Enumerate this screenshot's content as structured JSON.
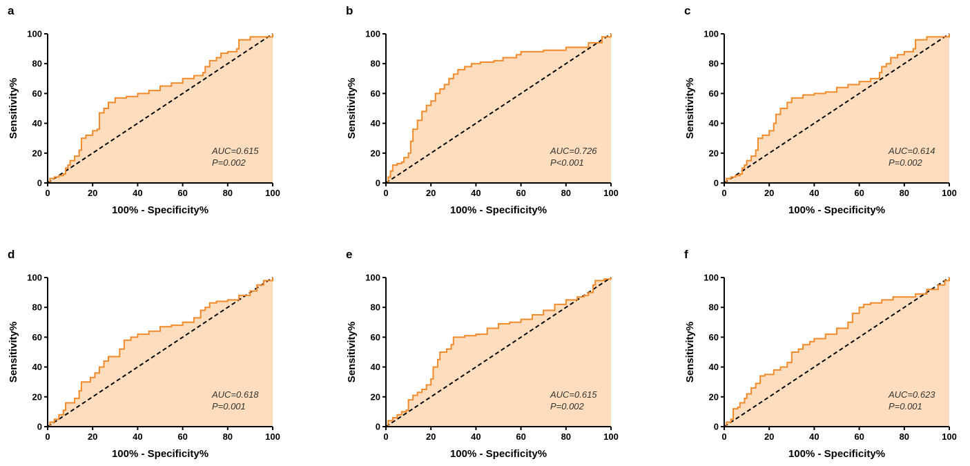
{
  "figure": {
    "x_label": "100% - Specificity%",
    "y_label": "Sensitivity%",
    "fill_color": "#FDDDBD",
    "curve_color": "#F08A2A"
  },
  "chart_data": [
    {
      "type": "area",
      "panel": "a",
      "xlim": [
        0,
        100
      ],
      "ylim": [
        0,
        100
      ],
      "x_ticks": [
        "0",
        "20",
        "40",
        "60",
        "80",
        "100"
      ],
      "y_ticks": [
        "0",
        "20",
        "40",
        "60",
        "80",
        "100"
      ],
      "auc": "AUC=0.615",
      "p": "P=0.002",
      "points": [
        [
          0,
          0
        ],
        [
          1,
          3
        ],
        [
          3,
          4
        ],
        [
          5,
          5
        ],
        [
          7,
          6
        ],
        [
          8,
          10
        ],
        [
          9,
          12
        ],
        [
          10,
          15
        ],
        [
          12,
          18
        ],
        [
          14,
          22
        ],
        [
          15,
          30
        ],
        [
          17,
          32
        ],
        [
          19,
          32
        ],
        [
          20,
          35
        ],
        [
          22,
          36
        ],
        [
          23,
          47
        ],
        [
          25,
          50
        ],
        [
          27,
          54
        ],
        [
          30,
          57
        ],
        [
          35,
          58
        ],
        [
          40,
          60
        ],
        [
          45,
          62
        ],
        [
          50,
          65
        ],
        [
          55,
          67
        ],
        [
          60,
          70
        ],
        [
          65,
          72
        ],
        [
          69,
          74
        ],
        [
          70,
          78
        ],
        [
          72,
          82
        ],
        [
          75,
          84
        ],
        [
          77,
          87
        ],
        [
          80,
          88
        ],
        [
          84,
          90
        ],
        [
          85,
          96
        ],
        [
          90,
          98
        ],
        [
          95,
          98
        ],
        [
          100,
          100
        ]
      ]
    },
    {
      "type": "area",
      "panel": "b",
      "xlim": [
        0,
        100
      ],
      "ylim": [
        0,
        100
      ],
      "x_ticks": [
        "0",
        "20",
        "40",
        "60",
        "80",
        "100"
      ],
      "y_ticks": [
        "0",
        "20",
        "40",
        "60",
        "80",
        "100"
      ],
      "auc": "AUC=0.726",
      "p": "P<0.001",
      "points": [
        [
          0,
          0
        ],
        [
          1,
          4
        ],
        [
          2,
          8
        ],
        [
          3,
          12
        ],
        [
          5,
          13
        ],
        [
          7,
          14
        ],
        [
          8,
          17
        ],
        [
          10,
          20
        ],
        [
          11,
          28
        ],
        [
          12,
          36
        ],
        [
          14,
          42
        ],
        [
          16,
          48
        ],
        [
          18,
          52
        ],
        [
          20,
          55
        ],
        [
          22,
          60
        ],
        [
          24,
          63
        ],
        [
          26,
          66
        ],
        [
          28,
          70
        ],
        [
          30,
          73
        ],
        [
          32,
          76
        ],
        [
          35,
          78
        ],
        [
          38,
          80
        ],
        [
          42,
          81
        ],
        [
          48,
          82
        ],
        [
          52,
          84
        ],
        [
          58,
          86
        ],
        [
          60,
          88
        ],
        [
          70,
          89
        ],
        [
          80,
          91
        ],
        [
          90,
          94
        ],
        [
          96,
          98
        ],
        [
          100,
          100
        ]
      ]
    },
    {
      "type": "area",
      "panel": "c",
      "xlim": [
        0,
        100
      ],
      "ylim": [
        0,
        100
      ],
      "x_ticks": [
        "0",
        "20",
        "40",
        "60",
        "80",
        "100"
      ],
      "y_ticks": [
        "0",
        "20",
        "40",
        "60",
        "80",
        "100"
      ],
      "auc": "AUC=0.614",
      "p": "P=0.002",
      "points": [
        [
          0,
          0
        ],
        [
          1,
          3
        ],
        [
          3,
          4
        ],
        [
          5,
          5
        ],
        [
          7,
          6
        ],
        [
          8,
          10
        ],
        [
          9,
          12
        ],
        [
          10,
          15
        ],
        [
          12,
          18
        ],
        [
          14,
          22
        ],
        [
          15,
          30
        ],
        [
          17,
          32
        ],
        [
          19,
          32
        ],
        [
          20,
          35
        ],
        [
          22,
          40
        ],
        [
          23,
          46
        ],
        [
          25,
          50
        ],
        [
          28,
          54
        ],
        [
          30,
          57
        ],
        [
          35,
          59
        ],
        [
          40,
          60
        ],
        [
          45,
          61
        ],
        [
          50,
          64
        ],
        [
          55,
          66
        ],
        [
          60,
          68
        ],
        [
          65,
          70
        ],
        [
          69,
          74
        ],
        [
          70,
          78
        ],
        [
          72,
          80
        ],
        [
          74,
          84
        ],
        [
          77,
          86
        ],
        [
          80,
          88
        ],
        [
          84,
          90
        ],
        [
          85,
          96
        ],
        [
          90,
          98
        ],
        [
          95,
          98
        ],
        [
          100,
          100
        ]
      ]
    },
    {
      "type": "area",
      "panel": "d",
      "xlim": [
        0,
        100
      ],
      "ylim": [
        0,
        100
      ],
      "x_ticks": [
        "0",
        "20",
        "40",
        "60",
        "80",
        "100"
      ],
      "y_ticks": [
        "0",
        "20",
        "40",
        "60",
        "80",
        "100"
      ],
      "auc": "AUC=0.618",
      "p": "P=0.001",
      "points": [
        [
          0,
          0
        ],
        [
          1,
          3
        ],
        [
          3,
          5
        ],
        [
          5,
          8
        ],
        [
          7,
          11
        ],
        [
          8,
          16
        ],
        [
          10,
          16
        ],
        [
          12,
          19
        ],
        [
          14,
          24
        ],
        [
          15,
          30
        ],
        [
          17,
          30
        ],
        [
          19,
          33
        ],
        [
          21,
          36
        ],
        [
          23,
          40
        ],
        [
          25,
          44
        ],
        [
          27,
          47
        ],
        [
          30,
          47
        ],
        [
          32,
          52
        ],
        [
          34,
          58
        ],
        [
          37,
          60
        ],
        [
          40,
          62
        ],
        [
          45,
          64
        ],
        [
          50,
          67
        ],
        [
          55,
          68
        ],
        [
          60,
          70
        ],
        [
          65,
          73
        ],
        [
          68,
          78
        ],
        [
          70,
          80
        ],
        [
          72,
          83
        ],
        [
          75,
          84
        ],
        [
          80,
          85
        ],
        [
          85,
          88
        ],
        [
          90,
          91
        ],
        [
          93,
          95
        ],
        [
          96,
          98
        ],
        [
          100,
          100
        ]
      ]
    },
    {
      "type": "area",
      "panel": "e",
      "xlim": [
        0,
        100
      ],
      "ylim": [
        0,
        100
      ],
      "x_ticks": [
        "0",
        "20",
        "40",
        "60",
        "80",
        "100"
      ],
      "y_ticks": [
        "0",
        "20",
        "40",
        "60",
        "80",
        "100"
      ],
      "auc": "AUC=0.615",
      "p": "P=0.002",
      "points": [
        [
          0,
          0
        ],
        [
          1,
          4
        ],
        [
          3,
          6
        ],
        [
          5,
          8
        ],
        [
          7,
          10
        ],
        [
          9,
          11
        ],
        [
          10,
          18
        ],
        [
          12,
          21
        ],
        [
          14,
          23
        ],
        [
          16,
          25
        ],
        [
          18,
          28
        ],
        [
          20,
          32
        ],
        [
          21,
          40
        ],
        [
          23,
          45
        ],
        [
          24,
          50
        ],
        [
          27,
          52
        ],
        [
          29,
          55
        ],
        [
          30,
          60
        ],
        [
          35,
          61
        ],
        [
          40,
          62
        ],
        [
          45,
          66
        ],
        [
          50,
          69
        ],
        [
          55,
          70
        ],
        [
          60,
          72
        ],
        [
          65,
          75
        ],
        [
          70,
          78
        ],
        [
          75,
          82
        ],
        [
          80,
          85
        ],
        [
          85,
          87
        ],
        [
          88,
          88
        ],
        [
          90,
          90
        ],
        [
          92,
          95
        ],
        [
          93,
          98
        ],
        [
          97,
          99
        ],
        [
          100,
          100
        ]
      ]
    },
    {
      "type": "area",
      "panel": "f",
      "xlim": [
        0,
        100
      ],
      "ylim": [
        0,
        100
      ],
      "x_ticks": [
        "0",
        "20",
        "40",
        "60",
        "80",
        "100"
      ],
      "y_ticks": [
        "0",
        "20",
        "40",
        "60",
        "80",
        "100"
      ],
      "auc": "AUC=0.623",
      "p": "P=0.001",
      "points": [
        [
          0,
          0
        ],
        [
          1,
          3
        ],
        [
          3,
          5
        ],
        [
          4,
          12
        ],
        [
          6,
          13
        ],
        [
          7,
          16
        ],
        [
          9,
          19
        ],
        [
          10,
          22
        ],
        [
          12,
          26
        ],
        [
          14,
          29
        ],
        [
          16,
          34
        ],
        [
          18,
          35
        ],
        [
          20,
          35
        ],
        [
          22,
          38
        ],
        [
          25,
          40
        ],
        [
          28,
          43
        ],
        [
          30,
          50
        ],
        [
          33,
          52
        ],
        [
          35,
          55
        ],
        [
          38,
          57
        ],
        [
          40,
          59
        ],
        [
          45,
          62
        ],
        [
          50,
          66
        ],
        [
          55,
          70
        ],
        [
          57,
          76
        ],
        [
          60,
          80
        ],
        [
          62,
          82
        ],
        [
          65,
          83
        ],
        [
          70,
          85
        ],
        [
          75,
          87
        ],
        [
          80,
          87
        ],
        [
          85,
          89
        ],
        [
          90,
          92
        ],
        [
          95,
          95
        ],
        [
          98,
          98
        ],
        [
          100,
          100
        ]
      ]
    }
  ]
}
